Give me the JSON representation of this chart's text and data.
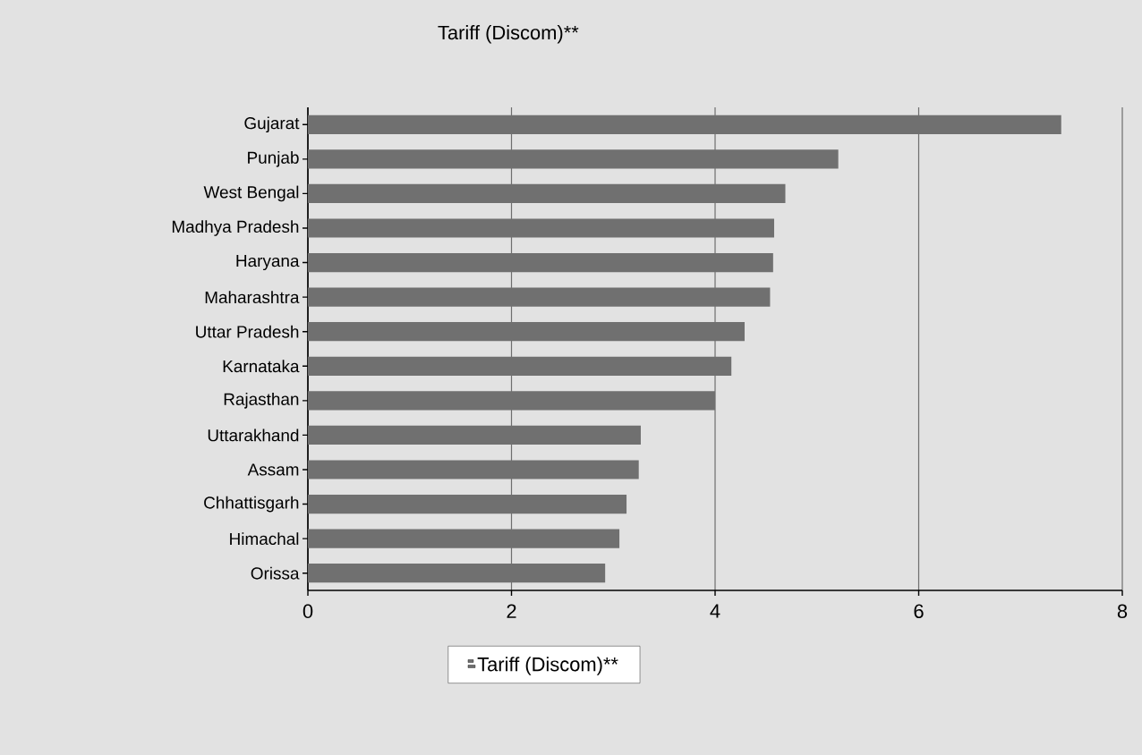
{
  "chart_data": {
    "type": "bar",
    "orientation": "horizontal",
    "title": "Tariff (Discom)**",
    "categories": [
      "Gujarat",
      "Punjab",
      "West Bengal",
      "Madhya Pradesh",
      "Haryana",
      "Maharashtra",
      "Uttar Pradesh",
      "Karnataka",
      "Rajasthan",
      "Uttarakhand",
      "Assam",
      "Chhattisgarh",
      "Himachal",
      "Orissa"
    ],
    "series": [
      {
        "name": "Tariff (Discom)**",
        "color": "#707070",
        "values": [
          7.4,
          5.21,
          4.69,
          4.58,
          4.57,
          4.54,
          4.29,
          4.16,
          4.0,
          3.27,
          3.25,
          3.13,
          3.06,
          2.92
        ]
      }
    ],
    "xlim": [
      0,
      8
    ],
    "xticks": [
      0,
      2,
      4,
      6,
      8
    ],
    "grid": "x",
    "legend": "bottom"
  }
}
